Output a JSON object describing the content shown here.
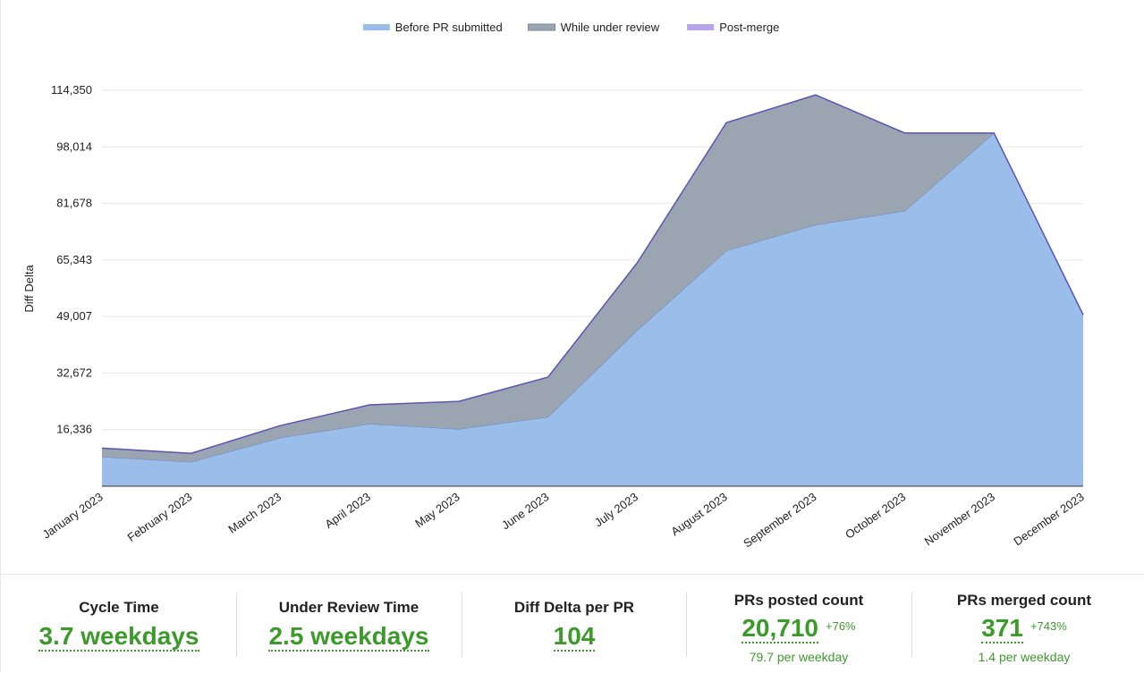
{
  "chart_data": {
    "type": "area",
    "stacked": true,
    "ylabel": "Diff Delta",
    "xlabel": "",
    "categories": [
      "January 2023",
      "February 2023",
      "March 2023",
      "April 2023",
      "May 2023",
      "June 2023",
      "July 2023",
      "August 2023",
      "September 2023",
      "October 2023",
      "November 2023",
      "December 2023"
    ],
    "y_ticks": [
      "16,336",
      "32,672",
      "49,007",
      "65,343",
      "81,678",
      "98,014",
      "114,350"
    ],
    "ylim": [
      0,
      114350
    ],
    "grid": true,
    "legend_position": "top-center",
    "series": [
      {
        "name": "Before PR submitted",
        "color": "#9bbdea",
        "values": [
          8500,
          7000,
          14000,
          18000,
          16500,
          20000,
          45000,
          68000,
          75500,
          79500,
          102000,
          49500
        ]
      },
      {
        "name": "While under review",
        "color": "#9aa5b1",
        "values": [
          2500,
          2500,
          3500,
          5500,
          8000,
          11500,
          19500,
          37000,
          37500,
          22500,
          0,
          0
        ]
      },
      {
        "name": "Post-merge",
        "color": "#b7a5ec",
        "values": [
          0,
          0,
          0,
          0,
          0,
          0,
          0,
          0,
          0,
          0,
          0,
          0
        ]
      }
    ],
    "line_color": "#5b55b5"
  },
  "metrics": [
    {
      "label": "Cycle Time",
      "value": "3.7 weekdays"
    },
    {
      "label": "Under Review Time",
      "value": "2.5 weekdays"
    },
    {
      "label": "Diff Delta per PR",
      "value": "104"
    },
    {
      "label": "PRs posted count",
      "value": "20,710",
      "delta": "+76%",
      "sub": "79.7 per weekday"
    },
    {
      "label": "PRs merged count",
      "value": "371",
      "delta": "+743%",
      "sub": "1.4 per weekday"
    }
  ]
}
